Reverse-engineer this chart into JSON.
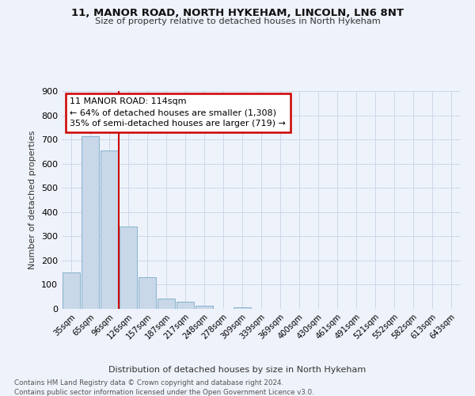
{
  "title1": "11, MANOR ROAD, NORTH HYKEHAM, LINCOLN, LN6 8NT",
  "title2": "Size of property relative to detached houses in North Hykeham",
  "xlabel": "Distribution of detached houses by size in North Hykeham",
  "ylabel": "Number of detached properties",
  "footnote1": "Contains HM Land Registry data © Crown copyright and database right 2024.",
  "footnote2": "Contains public sector information licensed under the Open Government Licence v3.0.",
  "bar_labels": [
    "35sqm",
    "65sqm",
    "96sqm",
    "126sqm",
    "157sqm",
    "187sqm",
    "217sqm",
    "248sqm",
    "278sqm",
    "309sqm",
    "339sqm",
    "369sqm",
    "400sqm",
    "430sqm",
    "461sqm",
    "491sqm",
    "521sqm",
    "552sqm",
    "582sqm",
    "613sqm",
    "643sqm"
  ],
  "bar_values": [
    150,
    715,
    655,
    340,
    130,
    43,
    30,
    13,
    0,
    8,
    0,
    0,
    0,
    0,
    0,
    0,
    0,
    0,
    0,
    0,
    0
  ],
  "bar_color": "#c8d8e8",
  "bar_edge_color": "#7aaac8",
  "vline_x": 2.5,
  "vline_color": "#cc0000",
  "annotation_text": "11 MANOR ROAD: 114sqm\n← 64% of detached houses are smaller (1,308)\n35% of semi-detached houses are larger (719) →",
  "annotation_box_color": "#ffffff",
  "annotation_box_edge": "#cc0000",
  "ylim": [
    0,
    900
  ],
  "yticks": [
    0,
    100,
    200,
    300,
    400,
    500,
    600,
    700,
    800,
    900
  ],
  "bg_color": "#eef2fa",
  "grid_color": "#c8d4e8"
}
